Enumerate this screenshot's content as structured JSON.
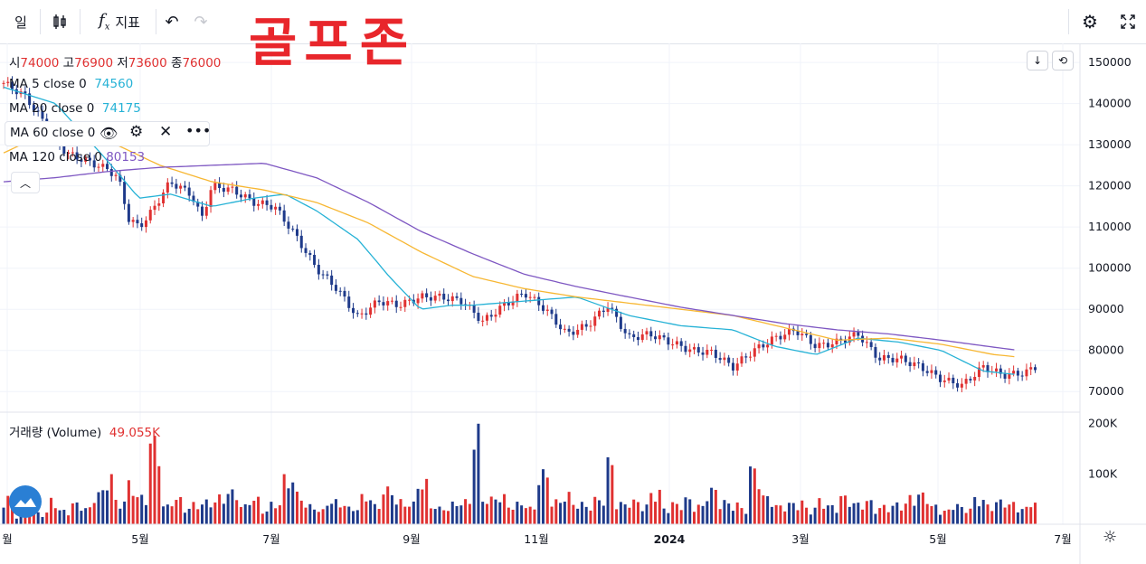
{
  "toolbar": {
    "interval": "일",
    "indicators_label": "지표"
  },
  "watermark": "골프존",
  "ohlc": {
    "o_label": "시",
    "o": "74000",
    "h_label": "고",
    "h": "76900",
    "l_label": "저",
    "l": "73600",
    "c_label": "종",
    "c": "76000"
  },
  "ma": [
    {
      "label": "MA 5 close 0",
      "value": "74560",
      "color": "#2962ff"
    },
    {
      "label": "MA 20 close 0",
      "value": "74175",
      "color": "#26b2d6"
    },
    {
      "label": "MA 60 close 0",
      "value": "",
      "color": "#f7b733"
    },
    {
      "label": "MA 120 close 0",
      "value": "80153",
      "color": "#7e57c2"
    }
  ],
  "volume_legend": {
    "label": "거래량 (Volume)",
    "value": "49.055K"
  },
  "colors": {
    "up": "#e03131",
    "down": "#1e3a8a",
    "ma20": "#26b2d6",
    "ma60": "#f7b733",
    "ma120": "#7e57c2"
  },
  "chart_data": {
    "type": "line",
    "price_axis": {
      "ticks": [
        "150000",
        "140000",
        "130000",
        "120000",
        "110000",
        "100000",
        "90000",
        "80000",
        "70000"
      ],
      "range": [
        65000,
        152000
      ]
    },
    "volume_axis": {
      "ticks": [
        "200K",
        "100K"
      ],
      "range": [
        0,
        210000
      ]
    },
    "time_axis": {
      "labels": [
        "월",
        "5월",
        "7월",
        "9월",
        "11월",
        "2024",
        "3월",
        "5월",
        "7월"
      ]
    },
    "series": [
      {
        "name": "MA 20 close 0",
        "x": [
          0,
          0.05,
          0.1,
          0.13,
          0.16,
          0.2,
          0.24,
          0.27,
          0.3,
          0.34,
          0.37,
          0.4,
          0.43,
          0.45,
          0.5,
          0.55,
          0.6,
          0.65,
          0.7,
          0.74,
          0.78,
          0.82,
          0.86,
          0.9,
          0.94,
          0.97
        ],
        "values": [
          144000,
          140000,
          126000,
          117000,
          118000,
          115000,
          117000,
          118000,
          114000,
          107000,
          98000,
          90000,
          91000,
          91000,
          92000,
          93000,
          88500,
          86000,
          85000,
          81000,
          79000,
          83000,
          82000,
          80000,
          75000,
          74175
        ]
      },
      {
        "name": "MA 60 close 0",
        "x": [
          0,
          0.05,
          0.1,
          0.15,
          0.2,
          0.25,
          0.3,
          0.35,
          0.4,
          0.45,
          0.5,
          0.55,
          0.6,
          0.65,
          0.7,
          0.75,
          0.8,
          0.85,
          0.9,
          0.95,
          0.97
        ],
        "values": [
          128000,
          134000,
          131000,
          125000,
          121000,
          119000,
          116000,
          111000,
          104000,
          98000,
          95000,
          93000,
          91500,
          90000,
          88500,
          85500,
          82500,
          83000,
          81500,
          79000,
          78500
        ]
      },
      {
        "name": "MA 120 close 0",
        "x": [
          0,
          0.05,
          0.1,
          0.15,
          0.2,
          0.25,
          0.3,
          0.35,
          0.4,
          0.45,
          0.5,
          0.55,
          0.6,
          0.65,
          0.7,
          0.75,
          0.8,
          0.85,
          0.9,
          0.95,
          0.97
        ],
        "values": [
          121000,
          122000,
          123500,
          124500,
          125000,
          125500,
          122000,
          116000,
          109000,
          103500,
          98500,
          95500,
          93000,
          90500,
          88500,
          86500,
          85000,
          84000,
          82500,
          80800,
          80153
        ]
      }
    ],
    "close_path": {
      "x": [
        0,
        0.02,
        0.04,
        0.06,
        0.08,
        0.1,
        0.11,
        0.12,
        0.13,
        0.14,
        0.16,
        0.18,
        0.19,
        0.2,
        0.22,
        0.24,
        0.26,
        0.28,
        0.3,
        0.32,
        0.34,
        0.36,
        0.38,
        0.4,
        0.42,
        0.44,
        0.46,
        0.48,
        0.5,
        0.52,
        0.54,
        0.56,
        0.58,
        0.6,
        0.62,
        0.64,
        0.66,
        0.68,
        0.7,
        0.72,
        0.74,
        0.76,
        0.78,
        0.8,
        0.82,
        0.84,
        0.86,
        0.88,
        0.9,
        0.92,
        0.94,
        0.96,
        0.98,
        0.99
      ],
      "values": [
        145000,
        142000,
        135000,
        128000,
        126000,
        124000,
        122000,
        112000,
        110000,
        113000,
        121000,
        118000,
        112000,
        120000,
        119000,
        116000,
        115000,
        108000,
        100000,
        95000,
        88000,
        92000,
        91000,
        93000,
        93000,
        92000,
        87000,
        91000,
        94000,
        90000,
        84000,
        86000,
        91000,
        83000,
        84000,
        82000,
        80000,
        79500,
        76000,
        80000,
        83000,
        85000,
        81000,
        82000,
        84000,
        78000,
        78000,
        76000,
        73000,
        71500,
        76000,
        74000,
        74500,
        76000
      ]
    },
    "volume_samples": [
      60,
      20,
      40,
      25,
      55,
      30,
      45,
      35,
      70,
      110,
      50,
      90,
      60,
      180,
      40,
      55,
      35,
      45,
      50,
      60,
      70,
      40,
      55,
      30,
      45,
      100,
      65,
      40,
      30,
      50,
      45,
      35,
      60,
      40,
      75,
      50,
      45,
      90,
      40,
      35,
      45,
      50,
      200,
      55,
      60,
      40,
      45,
      35,
      110,
      50,
      65,
      45,
      40,
      55,
      135,
      45,
      50,
      40,
      70,
      35,
      45,
      55,
      40,
      75,
      50,
      45,
      35,
      120,
      60,
      40,
      45,
      50,
      35,
      55,
      40,
      60,
      45,
      50,
      35,
      40,
      45,
      60,
      65,
      40,
      30,
      45,
      35,
      55,
      40,
      50,
      45,
      35,
      50
    ]
  }
}
